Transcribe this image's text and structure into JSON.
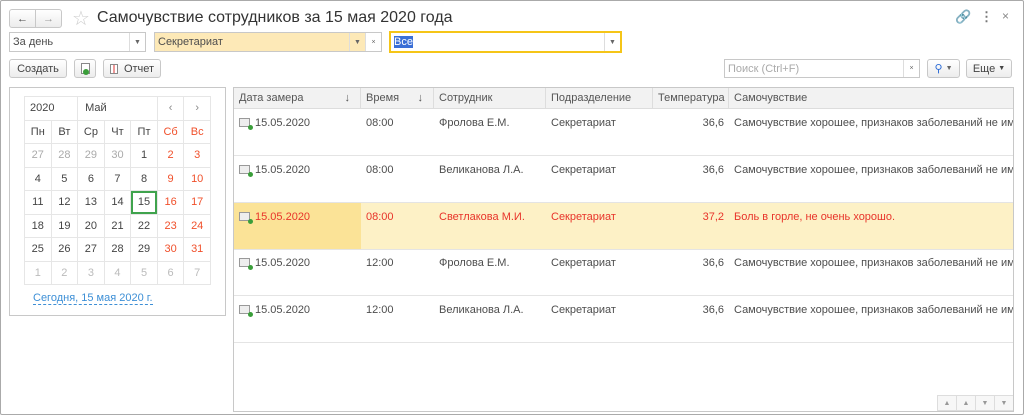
{
  "window": {
    "title": "Самочувствие сотрудников за 15 мая 2020 года",
    "icons": [
      "back-arrow-icon",
      "forward-arrow-icon",
      "star-icon",
      "link-icon",
      "more-icon",
      "close-icon"
    ]
  },
  "filters": {
    "period": "За день",
    "department": "Секретариат",
    "wellbeing": "Все"
  },
  "toolbar": {
    "create": "Создать",
    "report": "Отчет",
    "search_placeholder": "Поиск (Ctrl+F)",
    "more": "Еще"
  },
  "calendar": {
    "year": "2020",
    "month": "Май",
    "weekdays": [
      "Пн",
      "Вт",
      "Ср",
      "Чт",
      "Пт",
      "Сб",
      "Вс"
    ],
    "weeks": [
      [
        "27",
        "28",
        "29",
        "30",
        "1",
        "2",
        "3"
      ],
      [
        "4",
        "5",
        "6",
        "7",
        "8",
        "9",
        "10"
      ],
      [
        "11",
        "12",
        "13",
        "14",
        "15",
        "16",
        "17"
      ],
      [
        "18",
        "19",
        "20",
        "21",
        "22",
        "23",
        "24"
      ],
      [
        "25",
        "26",
        "27",
        "28",
        "29",
        "30",
        "31"
      ],
      [
        "1",
        "2",
        "3",
        "4",
        "5",
        "6",
        "7"
      ]
    ],
    "selected": "15",
    "today_link": "Сегодня, 15 мая 2020 г."
  },
  "table": {
    "columns": [
      "Дата замера",
      "Время",
      "Сотрудник",
      "Подразделение",
      "Температура",
      "Самочувствие"
    ],
    "rows": [
      [
        "15.05.2020",
        "08:00",
        "Фролова Е.М.",
        "Секретариат",
        "36,6",
        "Самочувствие хорошее, признаков заболеваний не имею."
      ],
      [
        "15.05.2020",
        "08:00",
        "Великанова Л.А.",
        "Секретариат",
        "36,6",
        "Самочувствие хорошее, признаков заболеваний не имею."
      ],
      [
        "15.05.2020",
        "08:00",
        "Светлакова М.И.",
        "Секретариат",
        "37,2",
        "Боль в горле, не очень хорошо."
      ],
      [
        "15.05.2020",
        "12:00",
        "Фролова Е.М.",
        "Секретариат",
        "36,6",
        "Самочувствие хорошее, признаков заболеваний не имею."
      ],
      [
        "15.05.2020",
        "12:00",
        "Великанова Л.А.",
        "Секретариат",
        "36,6",
        "Самочувствие хорошее, признаков заболеваний не имею."
      ]
    ],
    "highlighted_row": 2
  },
  "colors": {
    "highlight_row": "#fdf1c6",
    "highlight_text": "#e8342a",
    "weekend": "#f0502b",
    "selected_day": "#3fa34d",
    "department_field": "#fde9b7",
    "focus": "#f5c518"
  }
}
